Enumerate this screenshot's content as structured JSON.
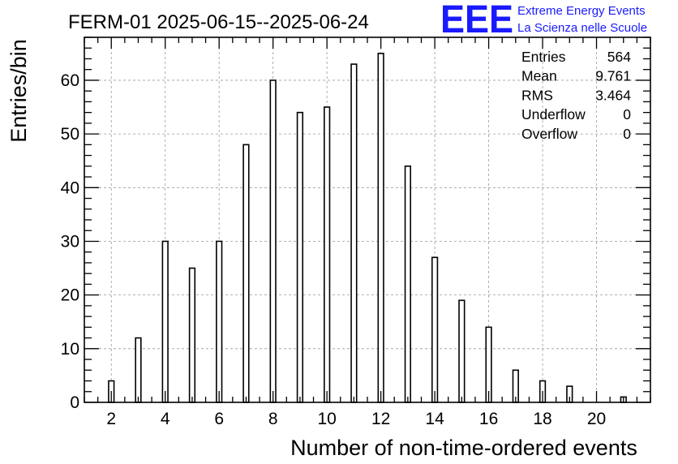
{
  "chart_data": {
    "type": "bar",
    "title": "FERM-01 2025-06-15--2025-06-24",
    "xlabel": "Number of non-time-ordered events",
    "ylabel": "Entries/bin",
    "xlim": [
      1,
      22
    ],
    "ylim": [
      0,
      68
    ],
    "grid": true,
    "x_ticks": [
      2,
      4,
      6,
      8,
      10,
      12,
      14,
      16,
      18,
      20
    ],
    "y_ticks": [
      0,
      10,
      20,
      30,
      40,
      50,
      60
    ],
    "bars": [
      {
        "x": 2,
        "value": 4
      },
      {
        "x": 3,
        "value": 12
      },
      {
        "x": 4,
        "value": 30
      },
      {
        "x": 5,
        "value": 25
      },
      {
        "x": 6,
        "value": 30
      },
      {
        "x": 7,
        "value": 48
      },
      {
        "x": 8,
        "value": 60
      },
      {
        "x": 9,
        "value": 54
      },
      {
        "x": 10,
        "value": 55
      },
      {
        "x": 11,
        "value": 63
      },
      {
        "x": 12,
        "value": 65
      },
      {
        "x": 13,
        "value": 44
      },
      {
        "x": 14,
        "value": 27
      },
      {
        "x": 15,
        "value": 19
      },
      {
        "x": 16,
        "value": 14
      },
      {
        "x": 17,
        "value": 6
      },
      {
        "x": 18,
        "value": 4
      },
      {
        "x": 19,
        "value": 3
      },
      {
        "x": 20,
        "value": 0
      },
      {
        "x": 21,
        "value": 1
      }
    ],
    "stats": [
      {
        "label": "Entries",
        "value": "564"
      },
      {
        "label": "Mean",
        "value": "9.761"
      },
      {
        "label": "RMS",
        "value": "3.464"
      },
      {
        "label": "Underflow",
        "value": "0"
      },
      {
        "label": "Overflow",
        "value": "0"
      }
    ],
    "stats_placement": "top-right"
  },
  "logo": {
    "letters": "EEE",
    "line1": "Extreme Energy Events",
    "line2": "La Scienza nelle Scuole",
    "color": "#1a1aff"
  }
}
